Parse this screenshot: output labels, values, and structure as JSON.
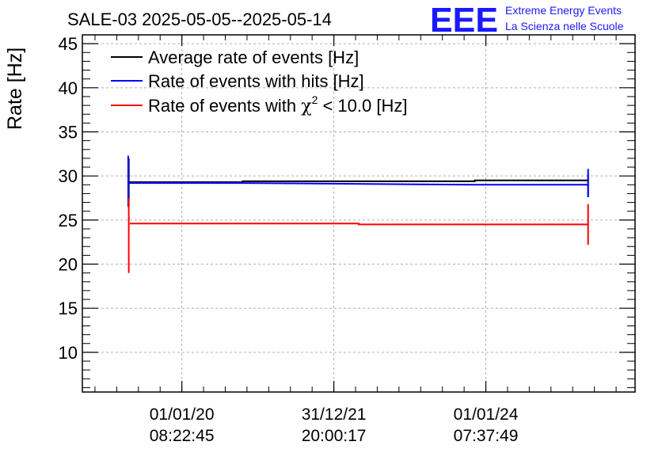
{
  "chart_data": {
    "type": "line",
    "title": "SALE-03 2025-05-05--2025-05-14",
    "xlabel": "",
    "ylabel": "Rate [Hz]",
    "ylim": [
      5.5,
      46
    ],
    "yticks": [
      10,
      15,
      20,
      25,
      30,
      35,
      40,
      45
    ],
    "xlim": [
      0,
      1
    ],
    "xticks": [
      {
        "x": 0.18,
        "date": "01/01/20",
        "time": "08:22:45"
      },
      {
        "x": 0.455,
        "date": "31/12/21",
        "time": "20:00:17"
      },
      {
        "x": 0.73,
        "date": "01/01/24",
        "time": "07:37:49"
      }
    ],
    "grid": true,
    "legend_position": "top-left",
    "series": [
      {
        "name": "Average rate of events [Hz]",
        "color": "#000000",
        "points": [
          {
            "x": 0.085,
            "y": 29.3
          },
          {
            "x": 0.29,
            "y": 29.3
          },
          {
            "x": 0.29,
            "y": 29.4
          },
          {
            "x": 0.71,
            "y": 29.4
          },
          {
            "x": 0.71,
            "y": 29.5
          },
          {
            "x": 0.915,
            "y": 29.5
          }
        ],
        "errors": [
          {
            "x": 0.084,
            "low": 26.6,
            "high": 32.0
          },
          {
            "x": 0.915,
            "low": 27.6,
            "high": 30.2
          }
        ]
      },
      {
        "name": "Rate of events with hits [Hz]",
        "color": "#0000ff",
        "points": [
          {
            "x": 0.085,
            "y": 29.2
          },
          {
            "x": 0.29,
            "y": 29.2
          },
          {
            "x": 0.71,
            "y": 29.0
          },
          {
            "x": 0.915,
            "y": 29.0
          }
        ],
        "errors": [
          {
            "x": 0.083,
            "low": 26.5,
            "high": 32.3
          },
          {
            "x": 0.915,
            "low": 27.6,
            "high": 30.8
          }
        ]
      },
      {
        "name": "Rate of events with χ² < 10.0 [Hz]",
        "color": "#ff0000",
        "points": [
          {
            "x": 0.086,
            "y": 24.6
          },
          {
            "x": 0.5,
            "y": 24.6
          },
          {
            "x": 0.5,
            "y": 24.5
          },
          {
            "x": 0.915,
            "y": 24.5
          }
        ],
        "errors": [
          {
            "x": 0.084,
            "low": 19.0,
            "high": 27.5
          },
          {
            "x": 0.915,
            "low": 22.2,
            "high": 26.8
          }
        ]
      }
    ],
    "legend": [
      {
        "label_main": "Rate of events with ",
        "chi": "χ",
        "sup": "2",
        "rest": " < 10.0 [Hz]"
      }
    ]
  },
  "branding": {
    "logo": "EEE",
    "line1": "Extreme Energy Events",
    "line2": "La Scienza nelle Scuole"
  }
}
